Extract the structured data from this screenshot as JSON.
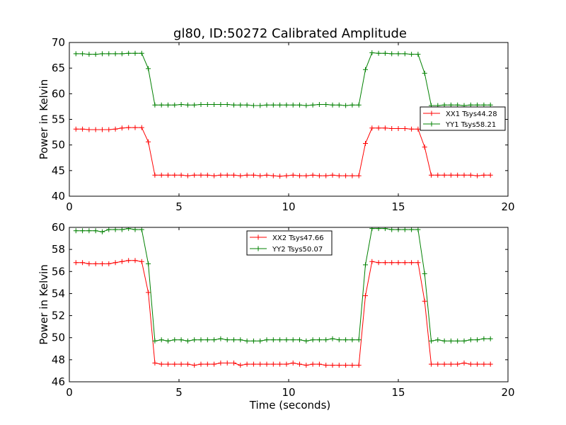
{
  "chart_data": [
    {
      "type": "line",
      "title": "gl80, ID:50272 Calibrated Amplitude",
      "xlabel": "",
      "ylabel": "Power in Kelvin",
      "xlim": [
        0,
        20
      ],
      "ylim": [
        40,
        70
      ],
      "xticks": [
        "0",
        "5",
        "10",
        "15",
        "20"
      ],
      "yticks": [
        "40",
        "45",
        "50",
        "55",
        "60",
        "65",
        "70"
      ],
      "grid": false,
      "legend_position": "right",
      "series": [
        {
          "name": "XX1 Tsys44.28",
          "color": "#ff0000",
          "x": [
            0.3,
            0.6,
            0.9,
            1.2,
            1.5,
            1.8,
            2.1,
            2.4,
            2.7,
            3.0,
            3.3,
            3.6,
            3.9,
            4.2,
            4.5,
            4.8,
            5.1,
            5.4,
            5.7,
            6.0,
            6.3,
            6.6,
            6.9,
            7.2,
            7.5,
            7.8,
            8.1,
            8.4,
            8.7,
            9.0,
            9.3,
            9.6,
            9.9,
            10.2,
            10.5,
            10.8,
            11.1,
            11.4,
            11.7,
            12.0,
            12.3,
            12.6,
            12.9,
            13.2,
            13.5,
            13.8,
            14.1,
            14.4,
            14.7,
            15.0,
            15.3,
            15.6,
            15.9,
            16.2,
            16.5,
            16.8,
            17.1,
            17.4,
            17.7,
            18.0,
            18.3,
            18.6,
            18.9,
            19.2
          ],
          "y": [
            53.1,
            53.1,
            53.0,
            53.0,
            53.0,
            53.0,
            53.1,
            53.3,
            53.4,
            53.4,
            53.4,
            50.6,
            44.1,
            44.1,
            44.1,
            44.1,
            44.1,
            44.0,
            44.1,
            44.1,
            44.1,
            44.0,
            44.1,
            44.1,
            44.1,
            44.0,
            44.1,
            44.1,
            44.0,
            44.1,
            44.0,
            43.9,
            44.0,
            44.1,
            44.0,
            44.0,
            44.1,
            44.0,
            44.0,
            44.1,
            44.0,
            44.0,
            44.0,
            44.0,
            50.3,
            53.3,
            53.3,
            53.3,
            53.2,
            53.2,
            53.2,
            53.1,
            53.1,
            49.6,
            44.1,
            44.1,
            44.1,
            44.1,
            44.1,
            44.1,
            44.1,
            44.0,
            44.1,
            44.1
          ]
        },
        {
          "name": "YY1 Tsys58.21",
          "color": "#008000",
          "x": [
            0.3,
            0.6,
            0.9,
            1.2,
            1.5,
            1.8,
            2.1,
            2.4,
            2.7,
            3.0,
            3.3,
            3.6,
            3.9,
            4.2,
            4.5,
            4.8,
            5.1,
            5.4,
            5.7,
            6.0,
            6.3,
            6.6,
            6.9,
            7.2,
            7.5,
            7.8,
            8.1,
            8.4,
            8.7,
            9.0,
            9.3,
            9.6,
            9.9,
            10.2,
            10.5,
            10.8,
            11.1,
            11.4,
            11.7,
            12.0,
            12.3,
            12.6,
            12.9,
            13.2,
            13.5,
            13.8,
            14.1,
            14.4,
            14.7,
            15.0,
            15.3,
            15.6,
            15.9,
            16.2,
            16.5,
            16.8,
            17.1,
            17.4,
            17.7,
            18.0,
            18.3,
            18.6,
            18.9,
            19.2
          ],
          "y": [
            67.8,
            67.8,
            67.7,
            67.7,
            67.8,
            67.8,
            67.8,
            67.8,
            67.9,
            67.9,
            67.9,
            64.9,
            57.8,
            57.8,
            57.8,
            57.8,
            57.9,
            57.8,
            57.8,
            57.9,
            57.9,
            57.9,
            57.9,
            57.9,
            57.8,
            57.8,
            57.8,
            57.7,
            57.7,
            57.8,
            57.8,
            57.8,
            57.8,
            57.8,
            57.8,
            57.7,
            57.8,
            57.9,
            57.9,
            57.8,
            57.8,
            57.7,
            57.8,
            57.8,
            64.7,
            68.0,
            67.9,
            67.9,
            67.8,
            67.8,
            67.8,
            67.7,
            67.7,
            64.0,
            57.7,
            57.7,
            57.8,
            57.8,
            57.8,
            57.7,
            57.8,
            57.8,
            57.8,
            57.8
          ]
        }
      ]
    },
    {
      "type": "line",
      "title": "",
      "xlabel": "Time (seconds)",
      "ylabel": "Power in Kelvin",
      "xlim": [
        0,
        20
      ],
      "ylim": [
        46,
        60
      ],
      "xticks": [
        "0",
        "5",
        "10",
        "15",
        "20"
      ],
      "yticks": [
        "46",
        "48",
        "50",
        "52",
        "54",
        "56",
        "58",
        "60"
      ],
      "grid": false,
      "legend_position": "top-center",
      "series": [
        {
          "name": "XX2 Tsys47.66",
          "color": "#ff0000",
          "x": [
            0.3,
            0.6,
            0.9,
            1.2,
            1.5,
            1.8,
            2.1,
            2.4,
            2.7,
            3.0,
            3.3,
            3.6,
            3.9,
            4.2,
            4.5,
            4.8,
            5.1,
            5.4,
            5.7,
            6.0,
            6.3,
            6.6,
            6.9,
            7.2,
            7.5,
            7.8,
            8.1,
            8.4,
            8.7,
            9.0,
            9.3,
            9.6,
            9.9,
            10.2,
            10.5,
            10.8,
            11.1,
            11.4,
            11.7,
            12.0,
            12.3,
            12.6,
            12.9,
            13.2,
            13.5,
            13.8,
            14.1,
            14.4,
            14.7,
            15.0,
            15.3,
            15.6,
            15.9,
            16.2,
            16.5,
            16.8,
            17.1,
            17.4,
            17.7,
            18.0,
            18.3,
            18.6,
            18.9,
            19.2
          ],
          "y": [
            56.8,
            56.8,
            56.7,
            56.7,
            56.7,
            56.7,
            56.8,
            56.9,
            57.0,
            57.0,
            56.9,
            54.1,
            47.7,
            47.6,
            47.6,
            47.6,
            47.6,
            47.6,
            47.5,
            47.6,
            47.6,
            47.6,
            47.7,
            47.7,
            47.7,
            47.5,
            47.6,
            47.6,
            47.6,
            47.6,
            47.6,
            47.6,
            47.6,
            47.7,
            47.6,
            47.5,
            47.6,
            47.6,
            47.5,
            47.5,
            47.5,
            47.5,
            47.5,
            47.5,
            53.8,
            56.9,
            56.8,
            56.8,
            56.8,
            56.8,
            56.8,
            56.8,
            56.8,
            53.3,
            47.6,
            47.6,
            47.6,
            47.6,
            47.6,
            47.7,
            47.6,
            47.6,
            47.6,
            47.6
          ]
        },
        {
          "name": "YY2 Tsys50.07",
          "color": "#008000",
          "x": [
            0.3,
            0.6,
            0.9,
            1.2,
            1.5,
            1.8,
            2.1,
            2.4,
            2.7,
            3.0,
            3.3,
            3.6,
            3.9,
            4.2,
            4.5,
            4.8,
            5.1,
            5.4,
            5.7,
            6.0,
            6.3,
            6.6,
            6.9,
            7.2,
            7.5,
            7.8,
            8.1,
            8.4,
            8.7,
            9.0,
            9.3,
            9.6,
            9.9,
            10.2,
            10.5,
            10.8,
            11.1,
            11.4,
            11.7,
            12.0,
            12.3,
            12.6,
            12.9,
            13.2,
            13.5,
            13.8,
            14.1,
            14.4,
            14.7,
            15.0,
            15.3,
            15.6,
            15.9,
            16.2,
            16.5,
            16.8,
            17.1,
            17.4,
            17.7,
            18.0,
            18.3,
            18.6,
            18.9,
            19.2
          ],
          "y": [
            59.7,
            59.7,
            59.7,
            59.7,
            59.6,
            59.8,
            59.8,
            59.8,
            59.9,
            59.8,
            59.8,
            56.7,
            49.7,
            49.8,
            49.7,
            49.8,
            49.8,
            49.7,
            49.8,
            49.8,
            49.8,
            49.8,
            49.9,
            49.8,
            49.8,
            49.8,
            49.7,
            49.7,
            49.7,
            49.8,
            49.8,
            49.8,
            49.8,
            49.8,
            49.8,
            49.7,
            49.8,
            49.8,
            49.8,
            49.9,
            49.8,
            49.8,
            49.8,
            49.8,
            56.6,
            59.9,
            59.9,
            59.9,
            59.8,
            59.8,
            59.8,
            59.8,
            59.8,
            55.8,
            49.7,
            49.8,
            49.7,
            49.7,
            49.7,
            49.7,
            49.8,
            49.8,
            49.9,
            49.9
          ]
        }
      ]
    }
  ]
}
